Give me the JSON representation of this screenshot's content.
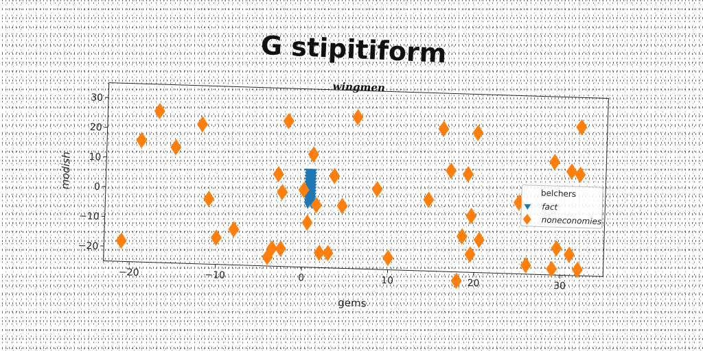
{
  "chart_data": {
    "type": "scatter",
    "title": "G stipitiform",
    "subtitle": "wingmen",
    "xlabel": "gems",
    "ylabel": "modish",
    "xlim": [
      -23,
      35
    ],
    "ylim": [
      -25,
      35
    ],
    "xticks": [
      -20,
      -10,
      0,
      10,
      20,
      30
    ],
    "yticks": [
      -20,
      -10,
      0,
      10,
      20,
      30
    ],
    "grid": false,
    "legend": {
      "placement": "right",
      "title": "belchers",
      "entries": [
        "fact",
        "noneconomies"
      ]
    },
    "series": [
      {
        "name": "fact",
        "color": "#1f77b4",
        "marker": "triangle-down",
        "points": [
          [
            0.5,
            7
          ],
          [
            0.5,
            6
          ],
          [
            0.5,
            5
          ],
          [
            0.5,
            4
          ],
          [
            0.5,
            3
          ],
          [
            0.5,
            2
          ],
          [
            0.5,
            1
          ],
          [
            0.5,
            0
          ],
          [
            0.5,
            -1
          ],
          [
            0.5,
            -2
          ],
          [
            0.5,
            -3
          ],
          [
            0.5,
            -4
          ],
          [
            1,
            7
          ],
          [
            1,
            6
          ],
          [
            1,
            5
          ],
          [
            1,
            4
          ],
          [
            1,
            3
          ],
          [
            1,
            2
          ],
          [
            1,
            1
          ],
          [
            1,
            0
          ],
          [
            1,
            -1
          ],
          [
            1,
            -2
          ],
          [
            1,
            -3
          ],
          [
            1,
            -4
          ]
        ]
      },
      {
        "name": "noneconomies",
        "color": "#ff7f0e",
        "marker": "diamond",
        "points": [
          [
            -17,
            26
          ],
          [
            -19,
            16
          ],
          [
            -15,
            14
          ],
          [
            -12,
            22
          ],
          [
            -2,
            24
          ],
          [
            6,
            26
          ],
          [
            16,
            23
          ],
          [
            20,
            22
          ],
          [
            32,
            25
          ],
          [
            29,
            13
          ],
          [
            31,
            10
          ],
          [
            32,
            9
          ],
          [
            1,
            13
          ],
          [
            -3,
            6
          ],
          [
            -2.5,
            0
          ],
          [
            0,
            1
          ],
          [
            3.5,
            6
          ],
          [
            17,
            9
          ],
          [
            19,
            8
          ],
          [
            8.5,
            2
          ],
          [
            14.5,
            -1
          ],
          [
            25,
            -1
          ],
          [
            -11,
            -3
          ],
          [
            1.5,
            -4
          ],
          [
            4.5,
            -4
          ],
          [
            19.5,
            -6
          ],
          [
            0.5,
            -10
          ],
          [
            -8,
            -13
          ],
          [
            -10,
            -16
          ],
          [
            18.5,
            -13
          ],
          [
            20.5,
            -14
          ],
          [
            -21,
            -18
          ],
          [
            -3.5,
            -19
          ],
          [
            -2.5,
            -19
          ],
          [
            2,
            -20
          ],
          [
            3,
            -20
          ],
          [
            10,
            -21
          ],
          [
            19.5,
            -19
          ],
          [
            -4,
            -22
          ],
          [
            26,
            -22
          ],
          [
            29.5,
            -16
          ],
          [
            31,
            -18
          ],
          [
            29,
            -23
          ],
          [
            32,
            -23
          ],
          [
            18,
            -28
          ]
        ]
      }
    ]
  }
}
